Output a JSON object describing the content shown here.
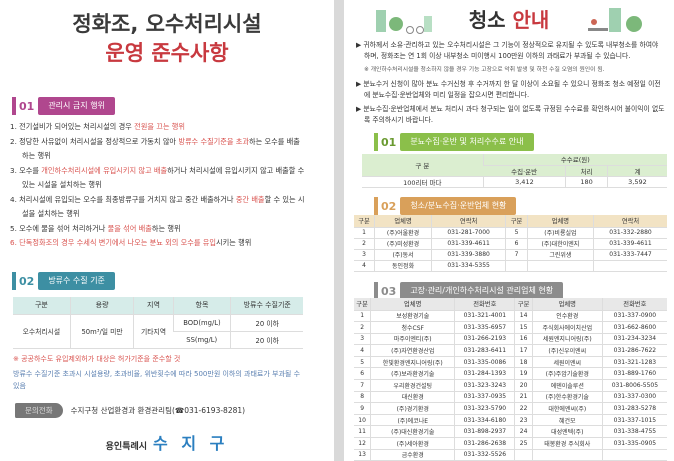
{
  "left": {
    "title_line1": "정화조, 오수처리시설",
    "title_line2": "운영 준수사항",
    "section1": {
      "num": "01",
      "label": "관리시 금지 행위",
      "color": "#b0478e"
    },
    "items": [
      [
        {
          "t": "1. 전기설비가 되어있는 처리시설의 경우 "
        },
        {
          "t": "전원을 끄는 행위",
          "hl": true
        }
      ],
      [
        {
          "t": "2. 정당한 사유없이 처리시설을 정상적으로 가동치 않아 "
        },
        {
          "t": "방류수 수질기준을 초과",
          "hl": true
        },
        {
          "t": "하는 오수를 배출하는 행위"
        }
      ],
      [
        {
          "t": "3. 오수를 "
        },
        {
          "t": "개인하수처리시설에 유입시키지 않고 배출",
          "hl": true
        },
        {
          "t": "하거나 처리시설에 유입시키지 않고 배출할 수 있는 시설을 설치하는 행위"
        }
      ],
      [
        {
          "t": "4. 처리시설에 유입되는 오수를 최종방류구를 거치지 않고 중간 배출하거나 "
        },
        {
          "t": "중간 배출",
          "hl": true
        },
        {
          "t": "할 수 있는 시설을 설치하는 행위"
        }
      ],
      [
        {
          "t": "5. 오수에 물을 섞어 처리하거나 "
        },
        {
          "t": "물을 섞어 배출",
          "hl": true
        },
        {
          "t": "하는 행위"
        }
      ],
      [
        {
          "t": "6. 단독정화조의 경우 수세식 변기에서 나오는 분뇨 외의 오수를 유입",
          "hl": true
        },
        {
          "t": "시키는 행위"
        }
      ]
    ],
    "section2": {
      "num": "02",
      "label": "방류수 수질 기준",
      "color": "#3d8fa3"
    },
    "std_table": {
      "headers": [
        "구분",
        "용량",
        "지역",
        "항목",
        "방류수 수질기준"
      ],
      "facility": "오수처리시설",
      "capacity": "50m³/일 미만",
      "region": "기타지역",
      "rows": [
        [
          "BOD(mg/L)",
          "20 이하"
        ],
        [
          "SS(mg/L)",
          "20 이하"
        ]
      ]
    },
    "note_red": "※ 공공하수도 유입제외허가 대상은 허가기준을 준수할 것",
    "note_blue": "방류수 수질기준 초과시 시설용량, 초과비율, 위반횟수에 따라 500만원 이하의 과태료가 부과될 수 있음",
    "contact_label": "문의전화",
    "contact_text": "수지구청 산업환경과 환경관리팀(☎031-6193-8281)",
    "logo_city": "용인특례시",
    "logo_district": "수 지 구"
  },
  "right": {
    "title_a": "청소",
    "title_b": "안내",
    "bullets": [
      "▶ 귀하께서 소유·관리하고 있는 오수처리시설은 그 기능이 정상적으로 유지될 수 있도록 내부청소를 하여야 하며, 정화조는 연 1회 이상 내부청소 미이행시 100만원 이하의 과태료가 부과될 수 있습니다.",
      "※ 개인하수처리시설을 청소하지 않을 경우 기능 고장으로 악취 발생 및 하천 수질 오염의 원인이 됨.",
      "▶ 분뇨수거 신청이 많아 분뇨 수거신청 후 수거까지 한 달 이상이 소요될 수 있으니 정화조 청소 예정일 이전에 분뇨수집·운반업체와 미리 일정을 잡으시면 편리합니다.",
      "▶ 분뇨수집·운반업체에서 분뇨 처리시 과다 청구되는 일이 없도록 규정된 수수료를 확인하시어 불이익이 없도록 주의하시기 바랍니다."
    ],
    "section1": {
      "num": "01",
      "label": "분뇨수집·운반 및 처리수수료 안내",
      "color": "#8bbf4a"
    },
    "fee": {
      "h_category": "구 분",
      "h_fee": "수수료(원)",
      "sub": [
        "수집·운반",
        "처리",
        "계"
      ],
      "row_label": "100리터 마다",
      "values": [
        "3,412",
        "180",
        "3,592"
      ]
    },
    "section2": {
      "num": "02",
      "label": "청소/분뇨수집·운반업체 현황",
      "color": "#d9a05a"
    },
    "t2": {
      "headers": [
        "구분",
        "업체명",
        "연락처",
        "구분",
        "업체명",
        "연락처"
      ],
      "rows": [
        [
          "1",
          "(주)어울환경",
          "031-281-7000",
          "5",
          "(주)비룡실업",
          "031-332-2880"
        ],
        [
          "2",
          "(주)미성환경",
          "031-339-4611",
          "6",
          "(주)대한이엔지",
          "031-339-4611"
        ],
        [
          "3",
          "(주)동서",
          "031-339-3880",
          "7",
          "그린위생",
          "031-333-7447"
        ],
        [
          "4",
          "동인정화",
          "031-334-5355",
          "",
          "",
          ""
        ]
      ]
    },
    "section3": {
      "num": "03",
      "label": "고장·관리/개인하수처리시설 관리업체 현황",
      "color": "#8c8c8c"
    },
    "t3": {
      "headers": [
        "구분",
        "업체명",
        "전화번호",
        "구분",
        "업체명",
        "전화번호"
      ],
      "rows": [
        [
          "1",
          "보성환경기술",
          "031-321-4001",
          "14",
          "인수환경",
          "031-337-0900"
        ],
        [
          "2",
          "청수CSF",
          "031-335-6957",
          "15",
          "주식회사에이치산업",
          "031-662-8600"
        ],
        [
          "3",
          "마주이엔티(주)",
          "031-266-2193",
          "16",
          "세원엔지니어링(주)",
          "031-234-3234"
        ],
        [
          "4",
          "(주)자연환경산업",
          "031-283-6411",
          "17",
          "(주)신우이엔씨",
          "031-286-7622"
        ],
        [
          "5",
          "한빛환경엔지니어링(주)",
          "031-335-0086",
          "18",
          "세원이엔씨",
          "031-321-1283"
        ],
        [
          "6",
          "(주)보라환경기술",
          "031-284-1393",
          "19",
          "(주)주암기술환경",
          "031-889-1760"
        ],
        [
          "7",
          "우리환경건설팅",
          "031-323-3243",
          "20",
          "에덴이솔루션",
          "031-8006-5505"
        ],
        [
          "8",
          "대신환경",
          "031-337-0935",
          "21",
          "(주)한수환경기술",
          "031-337-0300"
        ],
        [
          "9",
          "(주)경기환경",
          "031-323-5790",
          "22",
          "대한에엔씨(주)",
          "031-283-5278"
        ],
        [
          "10",
          "(주)에코나E",
          "031-334-6180",
          "23",
          "혜건모",
          "031-337-1015"
        ],
        [
          "11",
          "(주)대신환경기술",
          "031-898-2937",
          "24",
          "대성엔텍(주)",
          "031-338-4755"
        ],
        [
          "12",
          "(주)세아환경",
          "031-286-2638",
          "25",
          "태봉환경 주식회사",
          "031-335-0905"
        ],
        [
          "13",
          "금수환경",
          "031-332-5526",
          "",
          "",
          ""
        ]
      ]
    }
  }
}
